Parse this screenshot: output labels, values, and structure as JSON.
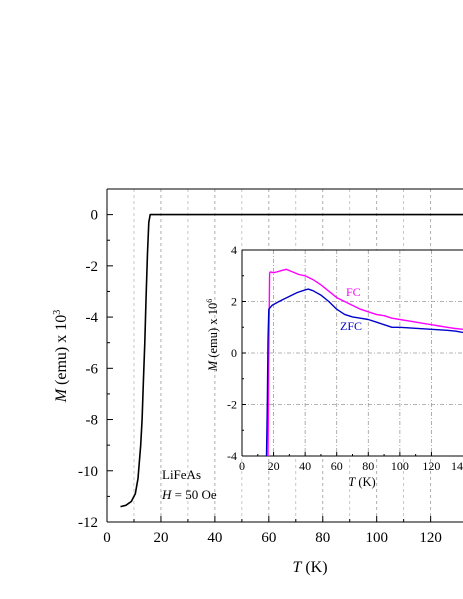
{
  "chart_data": [
    {
      "type": "line",
      "panel": "main",
      "xlabel_var": "T",
      "xlabel_unit": " (K)",
      "ylabel_var": "M",
      "ylabel_unit": " (emu) x 10",
      "ylabel_exp": "3",
      "xlim": [
        0,
        132
      ],
      "ylim": [
        -12,
        1
      ],
      "xticks": [
        0,
        20,
        40,
        60,
        80,
        100,
        120
      ],
      "yticks": [
        0,
        -2,
        -4,
        -6,
        -8,
        -10,
        -12
      ],
      "grid": "dashed vertical",
      "annotation": {
        "sample": "LiFeAs",
        "field_var": "H",
        "field_value": " = 50 Oe"
      },
      "series": [
        {
          "color": "#000000",
          "x": [
            5,
            7,
            9,
            10.5,
            11.5,
            12.5,
            13,
            13.5,
            14,
            14.5,
            15,
            15.5,
            16,
            17,
            20,
            40,
            60,
            80,
            100,
            120,
            132
          ],
          "y": [
            -11.4,
            -11.35,
            -11.2,
            -10.9,
            -10.3,
            -9.0,
            -8.0,
            -6.5,
            -5.0,
            -3.2,
            -1.5,
            -0.3,
            0.0,
            0.0,
            0.0,
            0.0,
            0.0,
            0.0,
            0.0,
            0.0,
            0.0
          ]
        }
      ]
    },
    {
      "type": "line",
      "panel": "inset",
      "xlabel_var": "T",
      "xlabel_unit": " (K)",
      "ylabel_var": "M",
      "ylabel_unit": " (emu) x 10",
      "ylabel_exp": "6",
      "xlim": [
        0,
        140
      ],
      "ylim": [
        -4,
        4
      ],
      "xticks": [
        0,
        20,
        40,
        60,
        80,
        100,
        120
      ],
      "xtick_last": "14",
      "yticks": [
        4,
        2,
        0,
        -2,
        -4
      ],
      "grid": "dash-dot",
      "series": [
        {
          "name": "FC",
          "color": "#ff00ff",
          "x": [
            16.5,
            17,
            17.5,
            18,
            20,
            22,
            25,
            28,
            32,
            36,
            40,
            45,
            50,
            55,
            60,
            65,
            70,
            75,
            80,
            85,
            90,
            95,
            100,
            105,
            110,
            115,
            120,
            125,
            130,
            135,
            140
          ],
          "y": [
            -4,
            0,
            3.1,
            3.15,
            3.12,
            3.15,
            3.2,
            3.25,
            3.15,
            3.05,
            3.0,
            2.85,
            2.65,
            2.4,
            2.15,
            2.0,
            1.85,
            1.7,
            1.6,
            1.5,
            1.45,
            1.35,
            1.3,
            1.25,
            1.2,
            1.15,
            1.1,
            1.05,
            1.0,
            0.95,
            0.92
          ]
        },
        {
          "name": "ZFC",
          "color": "#0000cc",
          "x": [
            15.5,
            16,
            16.5,
            17,
            19,
            22,
            25,
            30,
            35,
            40,
            42,
            45,
            50,
            55,
            60,
            65,
            70,
            75,
            80,
            85,
            90,
            95,
            100,
            105,
            110,
            115,
            120,
            125,
            130,
            135,
            140
          ],
          "y": [
            -4,
            -2,
            0.5,
            1.7,
            1.85,
            1.95,
            2.05,
            2.2,
            2.35,
            2.45,
            2.48,
            2.42,
            2.25,
            2.0,
            1.7,
            1.5,
            1.4,
            1.35,
            1.3,
            1.2,
            1.1,
            1.0,
            1.0,
            0.98,
            0.96,
            0.94,
            0.92,
            0.9,
            0.88,
            0.85,
            0.8
          ]
        }
      ]
    }
  ]
}
